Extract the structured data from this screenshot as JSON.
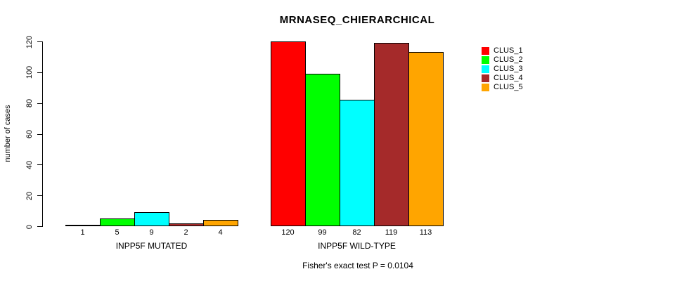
{
  "chart_data": {
    "type": "bar",
    "title": "MRNASEQ_CHIERARCHICAL",
    "ylabel": "number of cases",
    "xlabel": "",
    "ylim": [
      0,
      120
    ],
    "yticks": [
      0,
      20,
      40,
      60,
      80,
      100,
      120
    ],
    "grid": false,
    "legend_position": "right-outside",
    "bar_value_labels": true,
    "groups": [
      {
        "label": "INPP5F MUTATED",
        "values": [
          1,
          5,
          9,
          2,
          4
        ]
      },
      {
        "label": "INPP5F WILD-TYPE",
        "values": [
          120,
          99,
          82,
          119,
          113
        ]
      }
    ],
    "series": [
      {
        "name": "CLUS_1",
        "color": "#FF0000",
        "values": [
          1,
          120
        ]
      },
      {
        "name": "CLUS_2",
        "color": "#00FF00",
        "values": [
          5,
          99
        ]
      },
      {
        "name": "CLUS_3",
        "color": "#00FFFF",
        "values": [
          9,
          82
        ]
      },
      {
        "name": "CLUS_4",
        "color": "#A52A2A",
        "values": [
          2,
          119
        ]
      },
      {
        "name": "CLUS_5",
        "color": "#FFA500",
        "values": [
          4,
          113
        ]
      }
    ],
    "annotation": "Fisher's exact test P = 0.0104",
    "colors": {
      "bar_border": "#000000",
      "axis": "#000000",
      "text": "#000000",
      "background": "#FFFFFF"
    }
  }
}
